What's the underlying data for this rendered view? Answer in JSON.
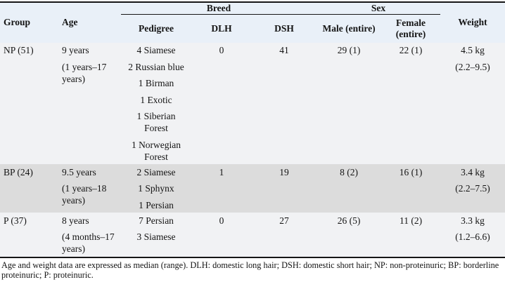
{
  "colors": {
    "header_background": "#e9f0f8",
    "shaded_row_background": "#dcdcdc",
    "row_background": "#f1f2f4",
    "rule": "#161616",
    "text": "#141414"
  },
  "table": {
    "column_groups": {
      "breed": "Breed",
      "sex": "Sex"
    },
    "columns": {
      "group": "Group",
      "age": "Age",
      "pedigree": "Pedigree",
      "dlh": "DLH",
      "dsh": "DSH",
      "male": "Male (entire)",
      "female": "Female (entire)",
      "weight": "Weight"
    },
    "rows": [
      {
        "group": "NP (51)",
        "age": [
          "9 years",
          "(1 years–17 years)"
        ],
        "pedigree": [
          "4 Siamese",
          "2 Russian blue",
          "1 Birman",
          "1 Exotic",
          "1 Siberian Forest",
          "1 Norwegian Forest"
        ],
        "dlh": "0",
        "dsh": "41",
        "male": "29 (1)",
        "female": "22 (1)",
        "weight": [
          "4.5 kg",
          "(2.2–9.5)"
        ]
      },
      {
        "group": "BP (24)",
        "age": [
          "9.5 years",
          "(1 years–18 years)"
        ],
        "pedigree": [
          "2 Siamese",
          "1 Sphynx",
          "1 Persian"
        ],
        "dlh": "1",
        "dsh": "19",
        "male": "8 (2)",
        "female": "16 (1)",
        "weight": [
          "3.4 kg",
          "(2.2–7.5)"
        ]
      },
      {
        "group": "P (37)",
        "age": [
          "8 years",
          "(4 months–17 years)"
        ],
        "pedigree": [
          "7 Persian",
          "3 Siamese"
        ],
        "dlh": "0",
        "dsh": "27",
        "male": "26 (5)",
        "female": "11 (2)",
        "weight": [
          "3.3 kg",
          "(1.2–6.6)"
        ]
      }
    ]
  },
  "footnote": "Age and weight data are expressed as median (range). DLH: domestic long hair; DSH: domestic short hair; NP: non-proteinuric; BP: borderline proteinuric; P: proteinuric."
}
